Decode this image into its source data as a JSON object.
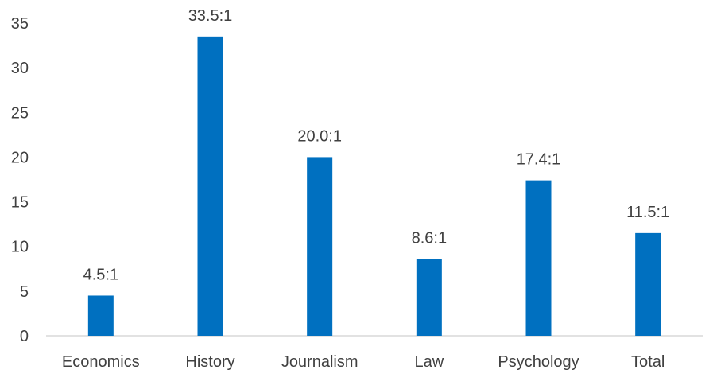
{
  "chart_data": {
    "type": "bar",
    "categories": [
      "Economics",
      "History",
      "Journalism",
      "Law",
      "Psychology",
      "Total"
    ],
    "values": [
      4.5,
      33.5,
      20.0,
      8.6,
      17.4,
      11.5
    ],
    "data_labels": [
      "4.5:1",
      "33.5:1",
      "20.0:1",
      "8.6:1",
      "17.4:1",
      "11.5:1"
    ],
    "title": "",
    "xlabel": "",
    "ylabel": "",
    "ylim": [
      0,
      35
    ],
    "yticks": [
      0,
      5,
      10,
      15,
      20,
      25,
      30,
      35
    ],
    "grid": false,
    "legend": "none",
    "colors": {
      "bar": "#0070C0",
      "axis": "#D9D9D9",
      "text": "#404040"
    }
  }
}
